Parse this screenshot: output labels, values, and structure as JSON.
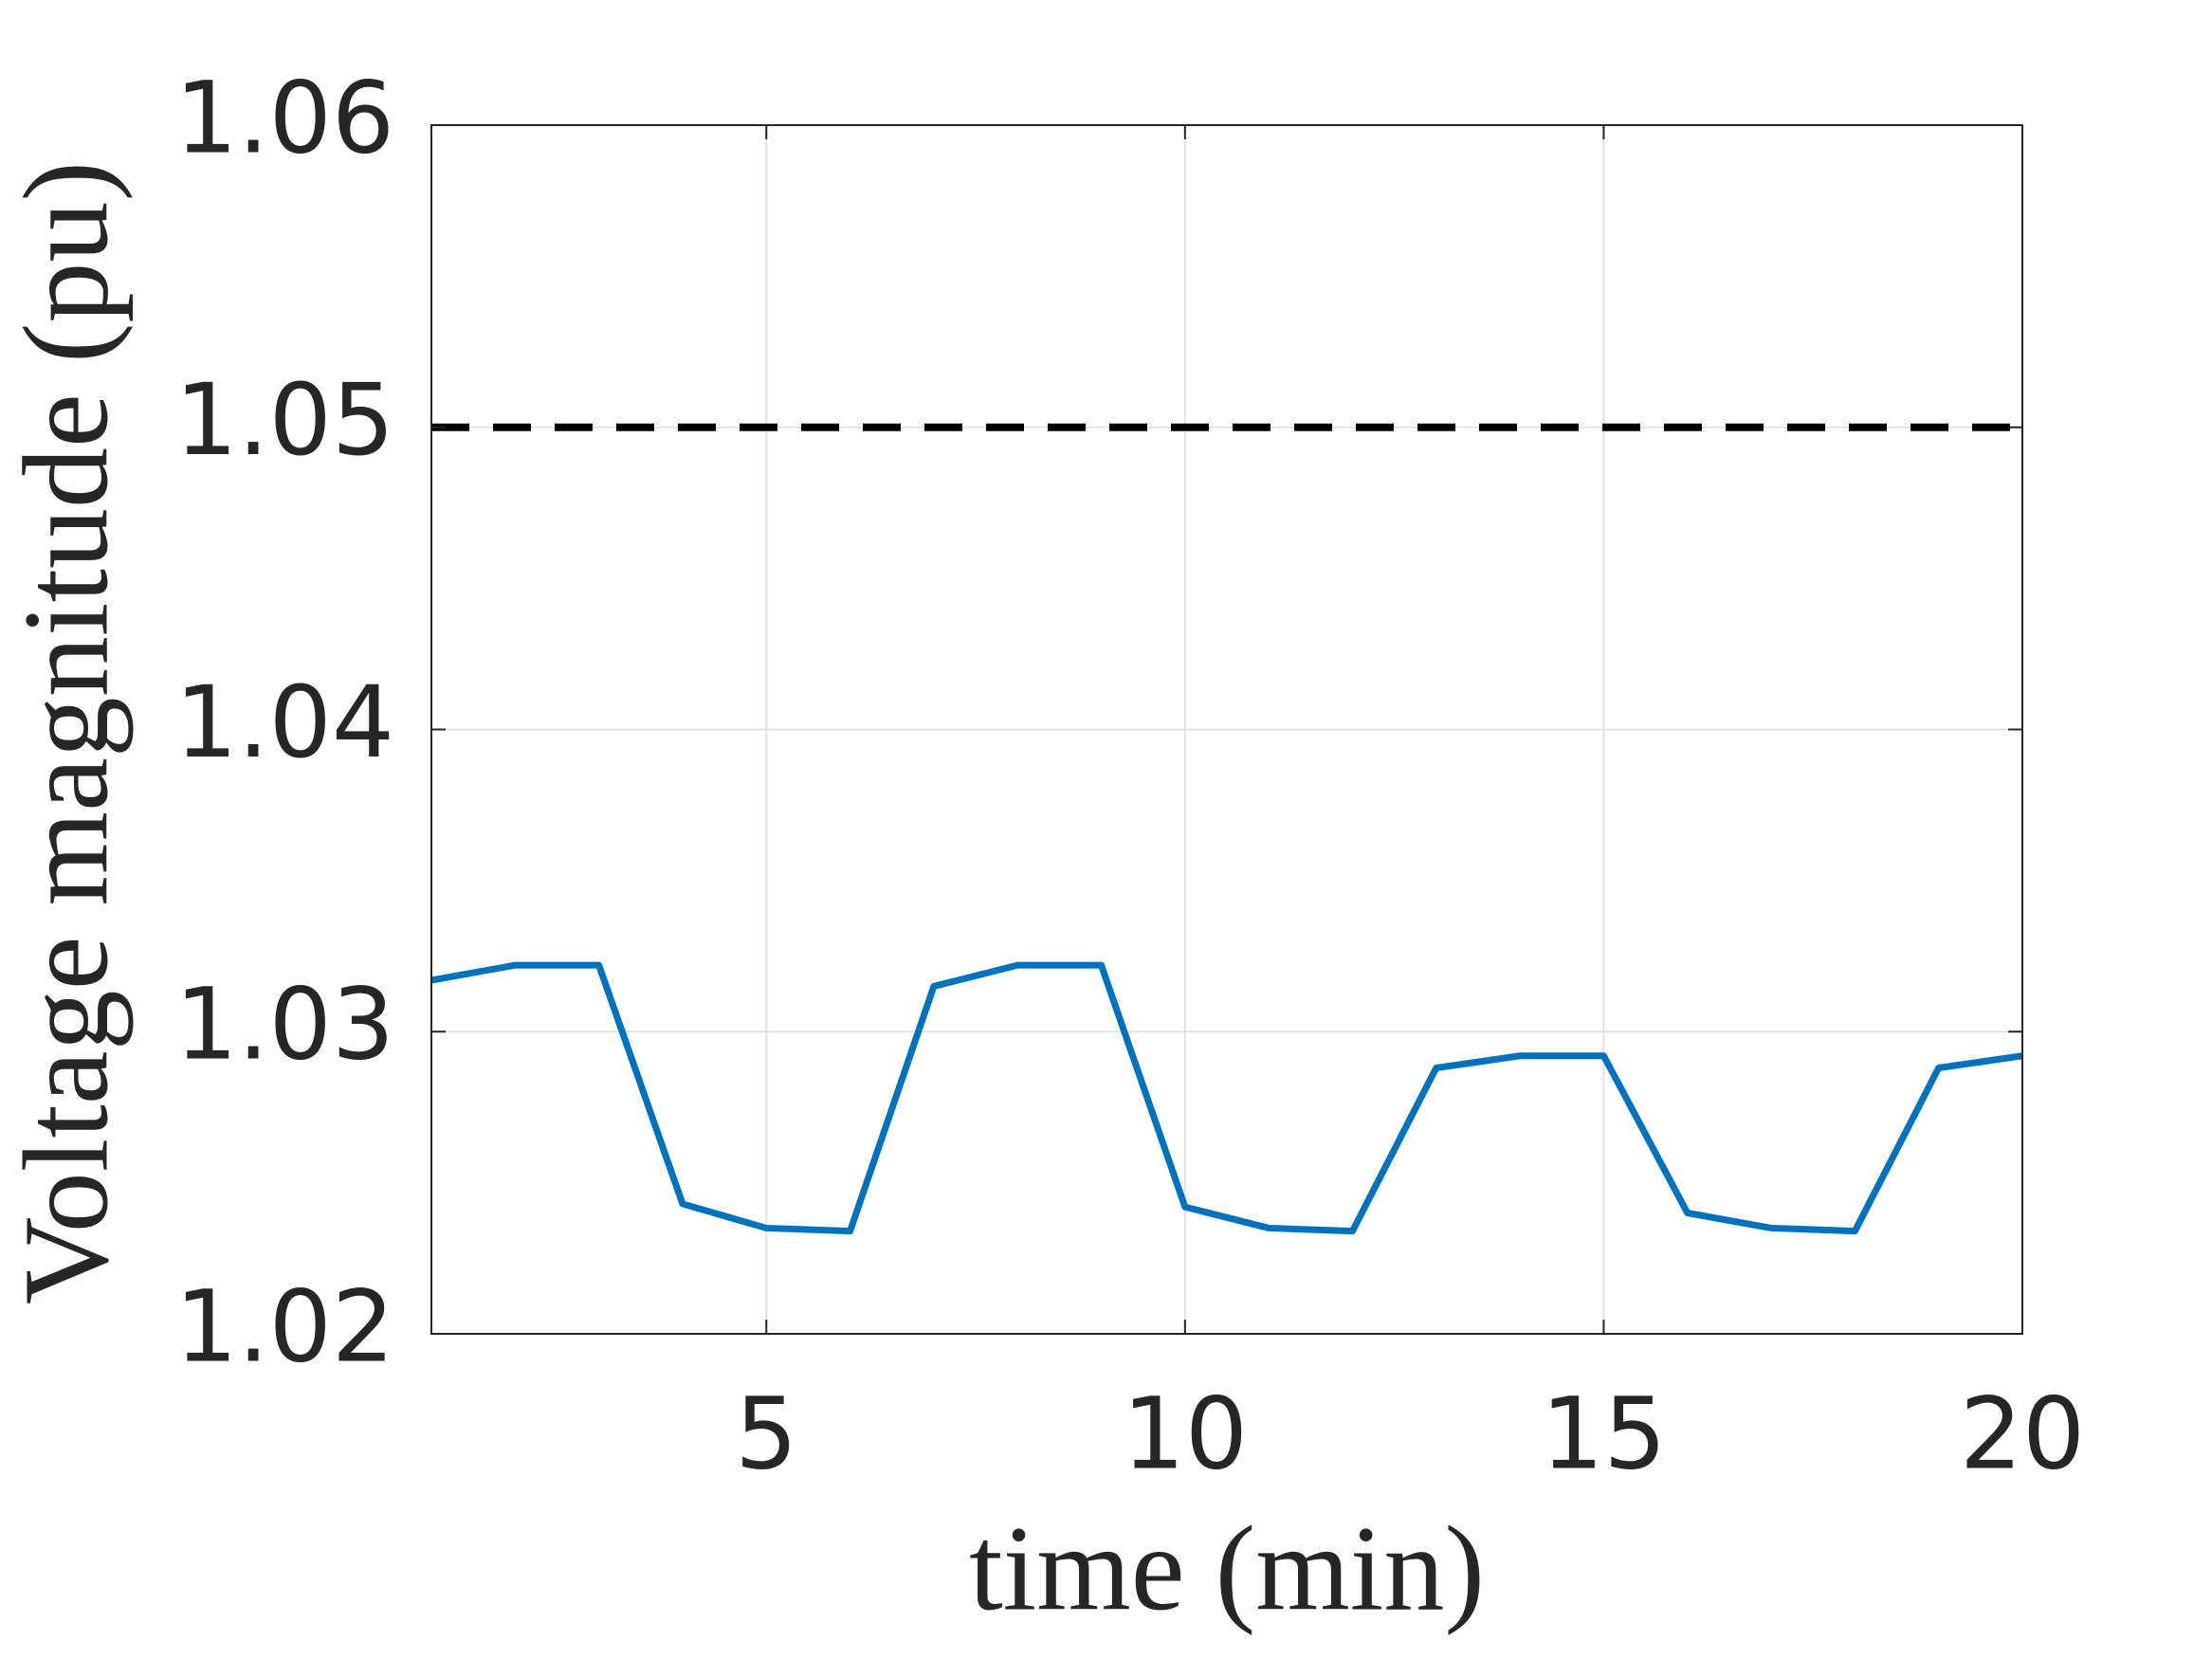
{
  "chart_data": {
    "type": "line",
    "xlabel": "time (min)",
    "ylabel": "Voltage magnitude (pu)",
    "x": [
      1,
      2,
      3,
      4,
      5,
      6,
      7,
      8,
      9,
      10,
      11,
      12,
      13,
      14,
      15,
      16,
      17,
      18,
      19,
      20
    ],
    "series": [
      {
        "color": "#0072bd",
        "values": [
          1.0317,
          1.0322,
          1.0322,
          1.0243,
          1.0235,
          1.0234,
          1.0315,
          1.0322,
          1.0322,
          1.0242,
          1.0235,
          1.0234,
          1.0288,
          1.0292,
          1.0292,
          1.024,
          1.0235,
          1.0234,
          1.0288,
          1.0292
        ]
      }
    ],
    "hlines": [
      {
        "value": 1.05,
        "color": "#000000",
        "style": "dashed"
      }
    ],
    "xlim": [
      1,
      20
    ],
    "xticks": [
      5,
      10,
      15,
      20
    ],
    "ylim": [
      1.02,
      1.06
    ],
    "yticks": [
      1.02,
      1.03,
      1.04,
      1.05,
      1.06
    ],
    "grid": true
  }
}
